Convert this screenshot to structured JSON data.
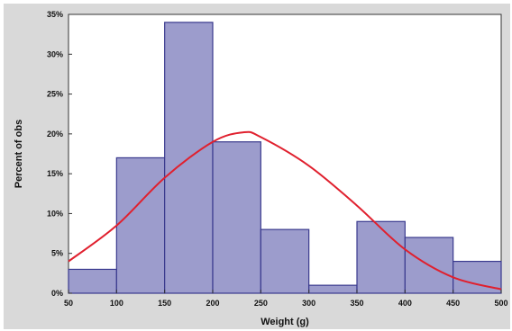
{
  "chart_data": {
    "type": "bar",
    "subtype": "histogram with fitted normal curve",
    "xlabel": "Weight (g)",
    "ylabel": "Percent of obs",
    "xlim": [
      50,
      500
    ],
    "ylim": [
      0,
      35
    ],
    "x_ticks": [
      "50",
      "100",
      "150",
      "200",
      "250",
      "300",
      "350",
      "400",
      "450",
      "500"
    ],
    "y_ticks": [
      "0%",
      "5%",
      "10%",
      "15%",
      "20%",
      "25%",
      "30%",
      "35%"
    ],
    "grid": false,
    "legend": "none",
    "bins": [
      {
        "from": 50,
        "to": 100,
        "value": 3
      },
      {
        "from": 100,
        "to": 150,
        "value": 17
      },
      {
        "from": 150,
        "to": 200,
        "value": 34
      },
      {
        "from": 200,
        "to": 250,
        "value": 19
      },
      {
        "from": 250,
        "to": 300,
        "value": 8
      },
      {
        "from": 300,
        "to": 350,
        "value": 1
      },
      {
        "from": 350,
        "to": 400,
        "value": 9
      },
      {
        "from": 400,
        "to": 450,
        "value": 7
      },
      {
        "from": 450,
        "to": 500,
        "value": 4
      }
    ],
    "curve": {
      "type": "normal",
      "x": [
        50,
        100,
        150,
        200,
        232,
        250,
        300,
        350,
        400,
        450,
        500
      ],
      "y": [
        4,
        8.5,
        14.5,
        19.0,
        20.2,
        19.6,
        16.0,
        11.0,
        5.5,
        2.0,
        0.5
      ]
    },
    "colors": {
      "bar_fill": "#9c9ccc",
      "bar_stroke": "#3a3a8e",
      "curve": "#e0202e",
      "plot_background": "#ffffff",
      "frame_background": "#d9d9d9"
    }
  }
}
